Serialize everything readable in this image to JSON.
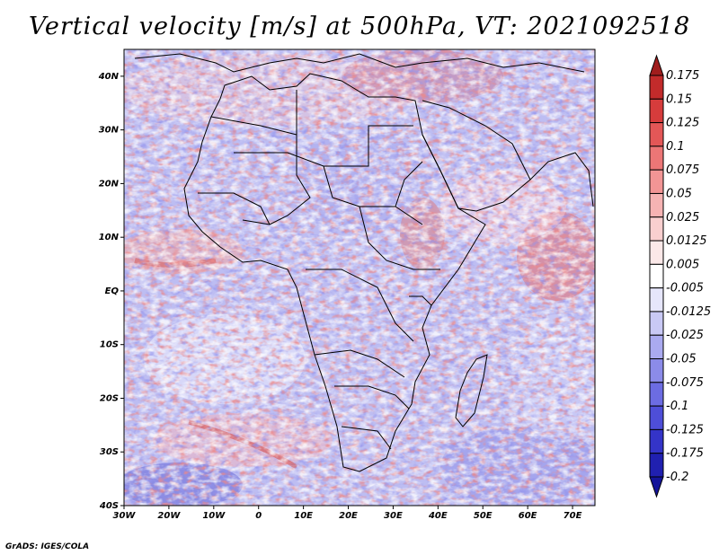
{
  "title": "Vertical velocity [m/s] at 500hPa, VT: 2021092518",
  "credit": "GrADS: IGES/COLA",
  "chart_data": {
    "type": "heatmap",
    "title": "Vertical velocity [m/s] at 500hPa, VT: 2021092518",
    "variable": "Vertical velocity",
    "units": "m/s",
    "level": "500hPa",
    "valid_time": "2021092518",
    "x_range": [
      -30,
      75
    ],
    "y_range": [
      -40,
      45
    ],
    "x_ticks": [
      {
        "value": -30,
        "label": "30W"
      },
      {
        "value": -20,
        "label": "20W"
      },
      {
        "value": -10,
        "label": "10W"
      },
      {
        "value": 0,
        "label": "0"
      },
      {
        "value": 10,
        "label": "10E"
      },
      {
        "value": 20,
        "label": "20E"
      },
      {
        "value": 30,
        "label": "30E"
      },
      {
        "value": 40,
        "label": "40E"
      },
      {
        "value": 50,
        "label": "50E"
      },
      {
        "value": 60,
        "label": "60E"
      },
      {
        "value": 70,
        "label": "70E"
      }
    ],
    "y_ticks": [
      {
        "value": 40,
        "label": "40N"
      },
      {
        "value": 30,
        "label": "30N"
      },
      {
        "value": 20,
        "label": "20N"
      },
      {
        "value": 10,
        "label": "10N"
      },
      {
        "value": 0,
        "label": "EQ"
      },
      {
        "value": -10,
        "label": "10S"
      },
      {
        "value": -20,
        "label": "20S"
      },
      {
        "value": -30,
        "label": "30S"
      },
      {
        "value": -40,
        "label": "40S"
      }
    ],
    "colorbar": {
      "labels": [
        "0.175",
        "0.15",
        "0.125",
        "0.1",
        "0.075",
        "0.05",
        "0.025",
        "0.0125",
        "0.005",
        "-0.005",
        "-0.0125",
        "-0.025",
        "-0.05",
        "-0.075",
        "-0.1",
        "-0.125",
        "-0.175",
        "-0.2"
      ],
      "colors": [
        "#a01d1d",
        "#c22b2b",
        "#d63c3c",
        "#e35757",
        "#ec7676",
        "#f29595",
        "#f6b3b3",
        "#f9cfcf",
        "#fbe8e8",
        "#ffffff",
        "#e6e6fb",
        "#c9c9f5",
        "#aaaaf0",
        "#8b8be9",
        "#6c6ce2",
        "#4e4ed8",
        "#3434c8",
        "#2020b0",
        "#14149a"
      ]
    }
  }
}
